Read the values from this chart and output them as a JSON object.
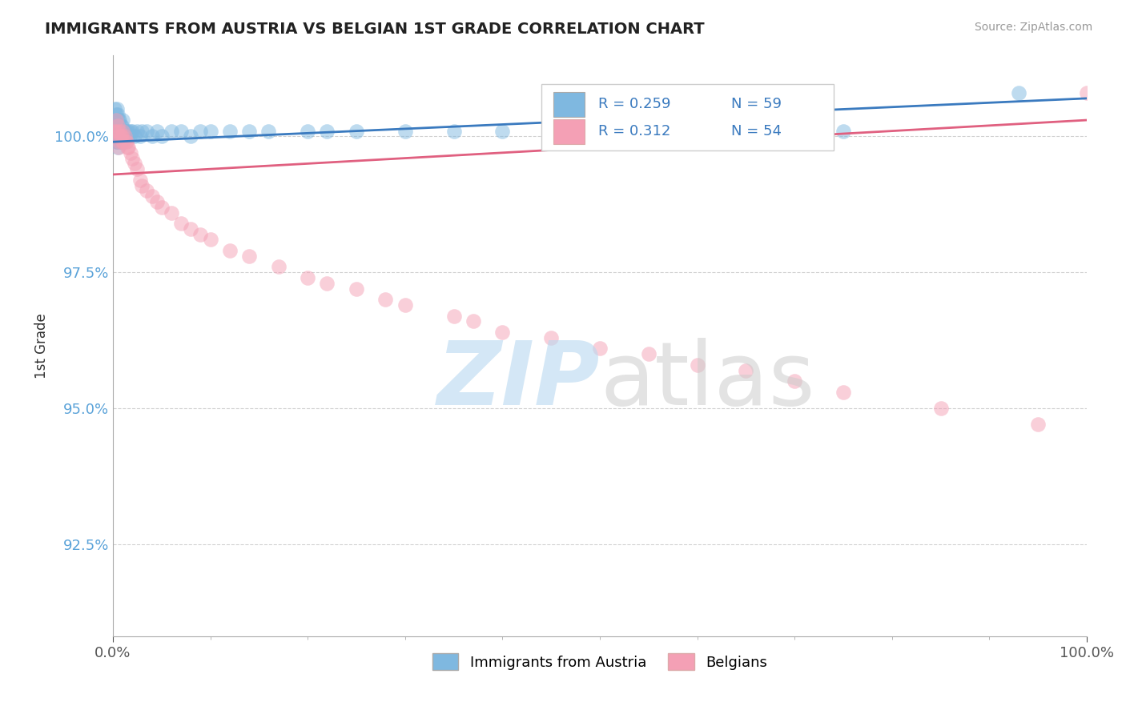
{
  "title": "IMMIGRANTS FROM AUSTRIA VS BELGIAN 1ST GRADE CORRELATION CHART",
  "source": "Source: ZipAtlas.com",
  "ylabel": "1st Grade",
  "ytick_labels": [
    "92.5%",
    "95.0%",
    "97.5%",
    "100.0%"
  ],
  "ytick_values": [
    0.925,
    0.95,
    0.975,
    1.0
  ],
  "xlim": [
    0.0,
    1.0
  ],
  "ylim": [
    0.908,
    1.015
  ],
  "legend_r1": "R = 0.259",
  "legend_n1": "N = 59",
  "legend_r2": "R = 0.312",
  "legend_n2": "N = 54",
  "blue_color": "#7fb8e0",
  "pink_color": "#f4a0b5",
  "blue_line_color": "#3a7abf",
  "pink_line_color": "#e06080",
  "background_color": "#ffffff",
  "blue_x": [
    0.001,
    0.002,
    0.002,
    0.003,
    0.003,
    0.003,
    0.004,
    0.004,
    0.004,
    0.005,
    0.005,
    0.005,
    0.005,
    0.006,
    0.006,
    0.006,
    0.007,
    0.007,
    0.008,
    0.008,
    0.009,
    0.009,
    0.01,
    0.01,
    0.011,
    0.012,
    0.013,
    0.014,
    0.015,
    0.016,
    0.017,
    0.018,
    0.02,
    0.022,
    0.025,
    0.028,
    0.03,
    0.035,
    0.04,
    0.045,
    0.05,
    0.06,
    0.07,
    0.08,
    0.09,
    0.1,
    0.12,
    0.14,
    0.16,
    0.2,
    0.22,
    0.25,
    0.3,
    0.35,
    0.4,
    0.5,
    0.6,
    0.75,
    0.93
  ],
  "blue_y": [
    1.003,
    1.005,
    1.002,
    1.004,
    1.001,
    0.999,
    1.005,
    1.002,
    0.999,
    1.004,
    1.002,
    1.0,
    0.998,
    1.003,
    1.001,
    0.999,
    1.003,
    1.0,
    1.002,
    0.999,
    1.002,
    0.999,
    1.003,
    1.0,
    1.001,
    1.001,
    1.0,
    1.001,
    1.0,
    1.001,
    1.0,
    1.001,
    1.001,
    1.0,
    1.001,
    1.0,
    1.001,
    1.001,
    1.0,
    1.001,
    1.0,
    1.001,
    1.001,
    1.0,
    1.001,
    1.001,
    1.001,
    1.001,
    1.001,
    1.001,
    1.001,
    1.001,
    1.001,
    1.001,
    1.001,
    1.001,
    1.001,
    1.001,
    1.008
  ],
  "pink_x": [
    0.002,
    0.003,
    0.004,
    0.005,
    0.006,
    0.006,
    0.007,
    0.007,
    0.008,
    0.009,
    0.01,
    0.01,
    0.011,
    0.012,
    0.013,
    0.014,
    0.015,
    0.016,
    0.018,
    0.02,
    0.022,
    0.025,
    0.028,
    0.03,
    0.035,
    0.04,
    0.045,
    0.05,
    0.06,
    0.07,
    0.08,
    0.09,
    0.1,
    0.12,
    0.14,
    0.17,
    0.2,
    0.22,
    0.25,
    0.28,
    0.3,
    0.35,
    0.37,
    0.4,
    0.45,
    0.5,
    0.55,
    0.6,
    0.65,
    0.7,
    0.75,
    0.85,
    0.95,
    1.0
  ],
  "pink_y": [
    1.001,
    1.003,
    1.001,
    1.002,
    1.0,
    0.998,
    1.001,
    0.999,
    1.0,
    1.0,
    1.001,
    0.999,
    0.999,
    1.0,
    0.999,
    0.999,
    0.998,
    0.998,
    0.997,
    0.996,
    0.995,
    0.994,
    0.992,
    0.991,
    0.99,
    0.989,
    0.988,
    0.987,
    0.986,
    0.984,
    0.983,
    0.982,
    0.981,
    0.979,
    0.978,
    0.976,
    0.974,
    0.973,
    0.972,
    0.97,
    0.969,
    0.967,
    0.966,
    0.964,
    0.963,
    0.961,
    0.96,
    0.958,
    0.957,
    0.955,
    0.953,
    0.95,
    0.947,
    1.008
  ],
  "blue_line_x": [
    0.0,
    1.0
  ],
  "blue_line_y": [
    0.999,
    1.007
  ],
  "pink_line_x": [
    0.0,
    1.0
  ],
  "pink_line_y": [
    0.993,
    1.003
  ]
}
